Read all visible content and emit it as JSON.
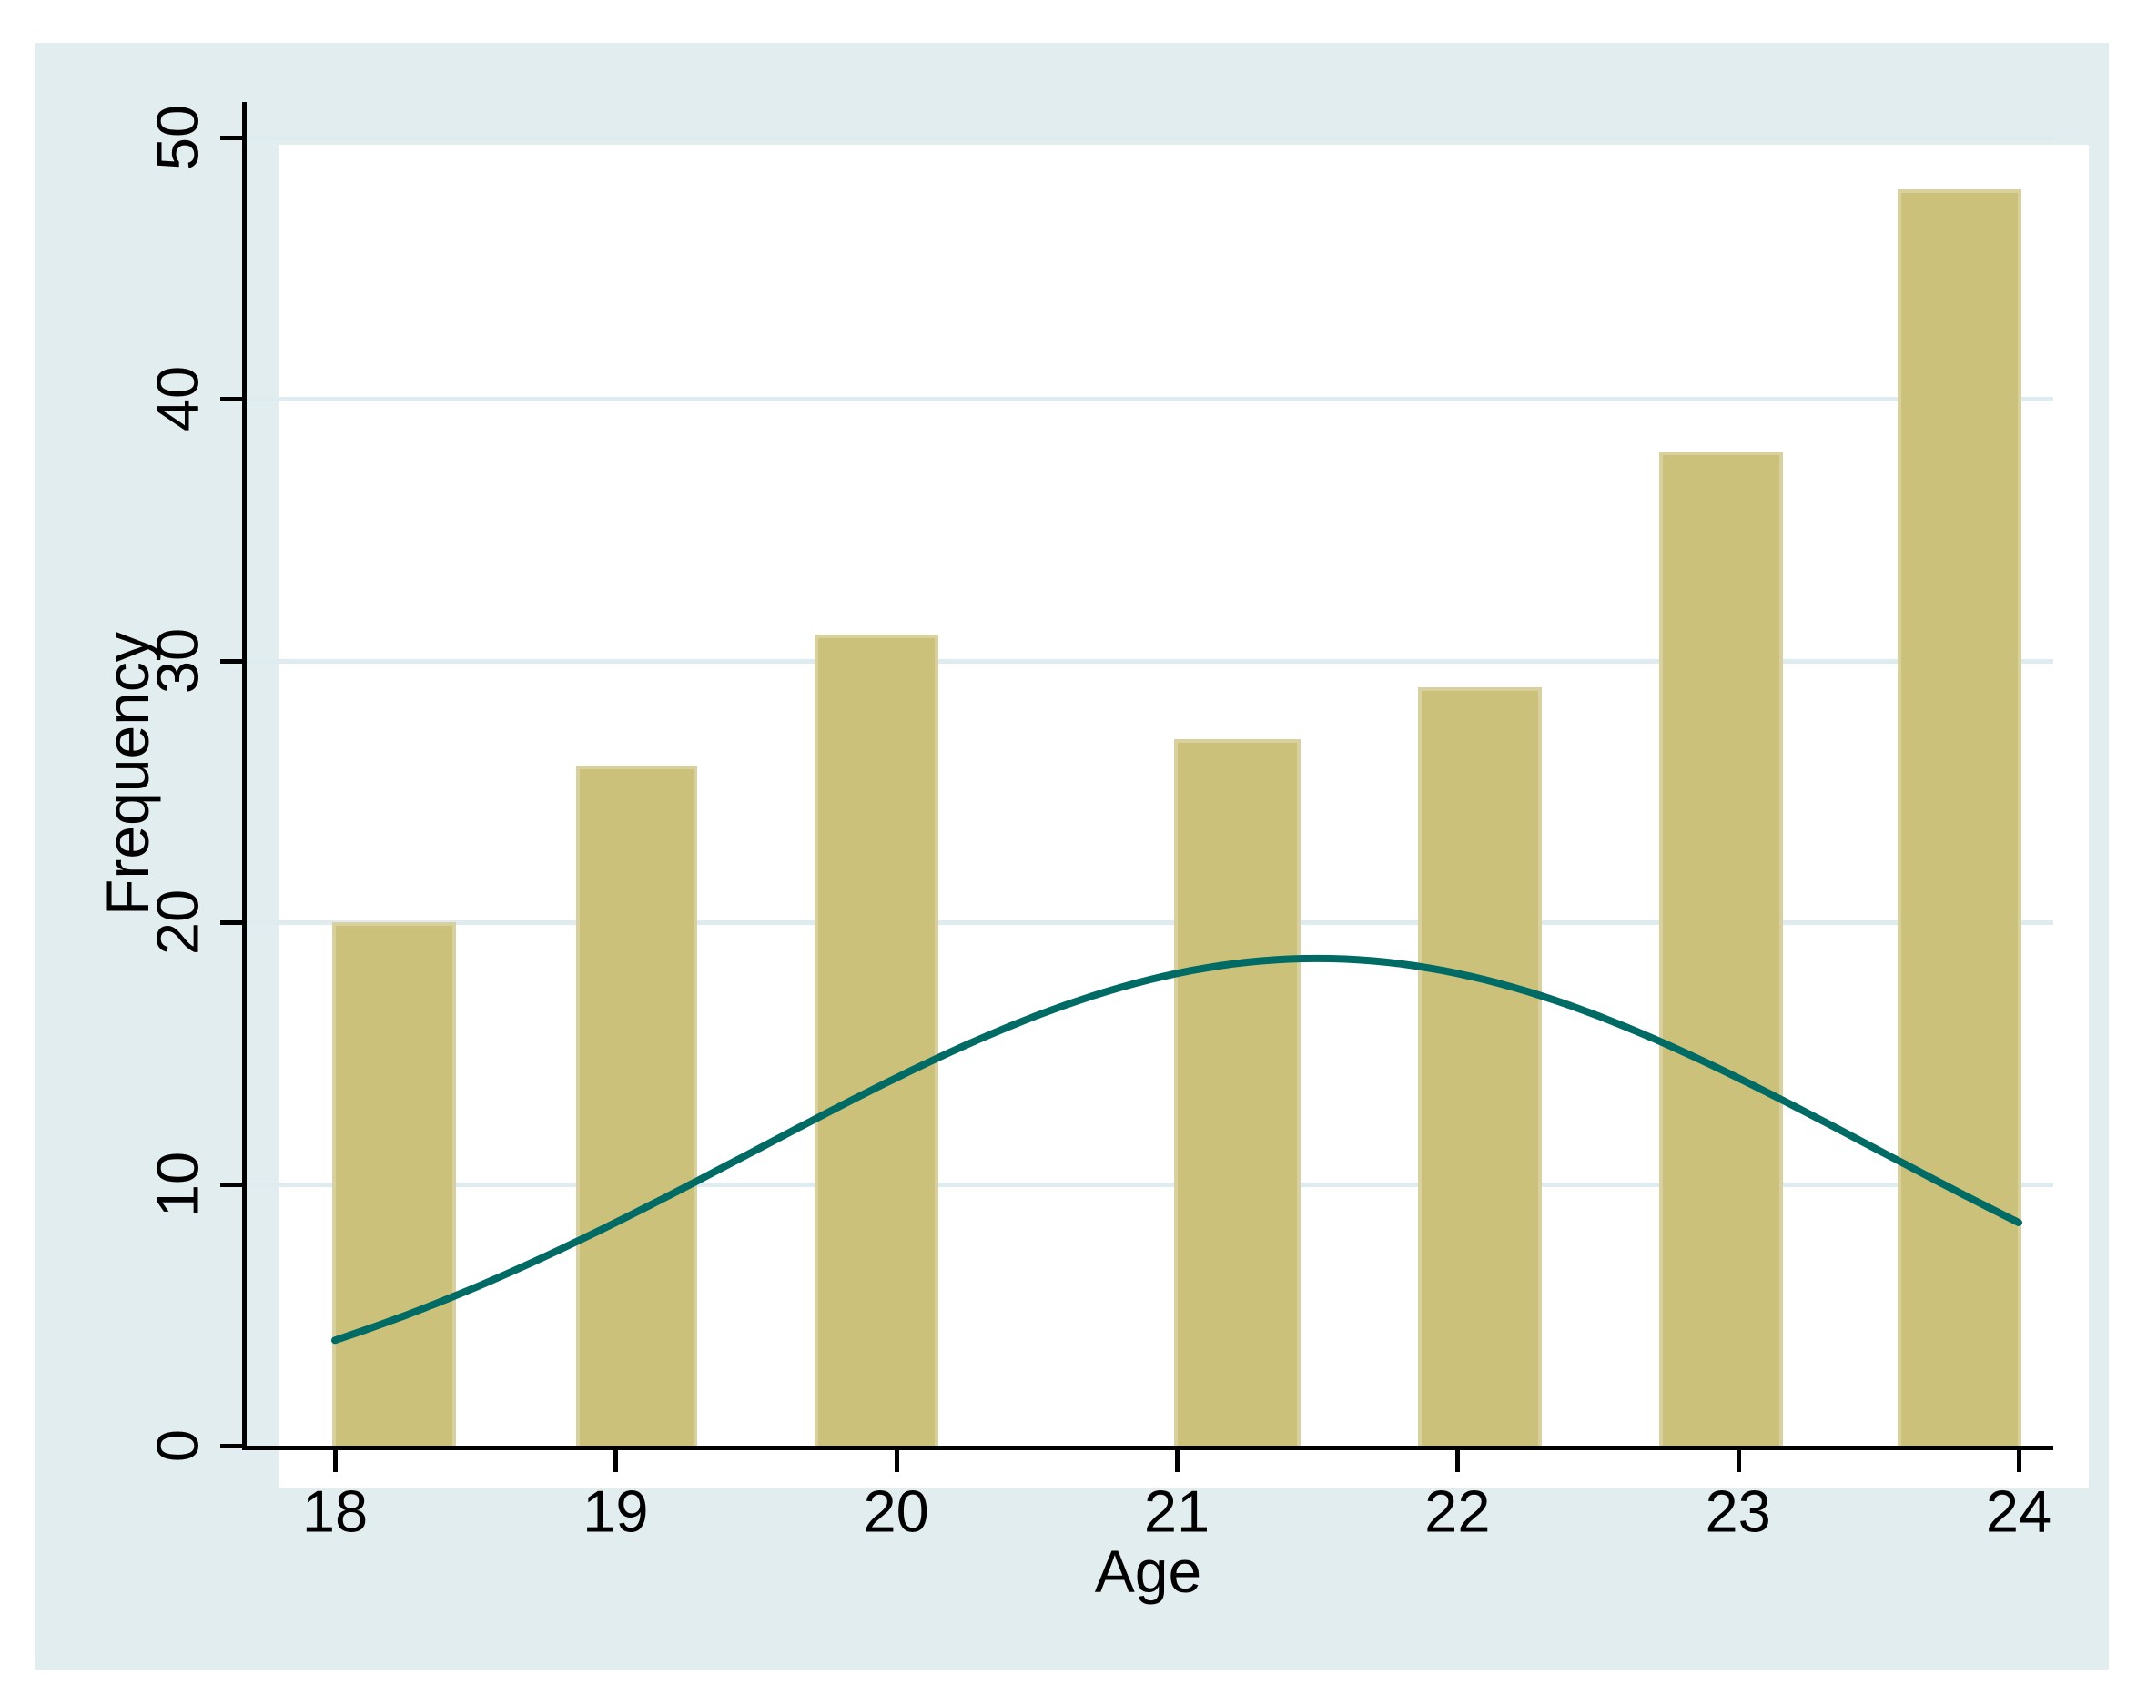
{
  "page": {
    "background": "#ffffff"
  },
  "graph": {
    "background": "#e2edf0",
    "plot_background": "#ffffff",
    "gridline_color": "#dfecef",
    "axis_color": "#000000",
    "text_color": "#000000"
  },
  "chart_data": {
    "type": "bar",
    "subtype": "histogram_with_normal_curve",
    "title": "",
    "xlabel": "Age",
    "ylabel": "Frequency",
    "x_ticks": [
      "18",
      "19",
      "20",
      "21",
      "22",
      "23",
      "24"
    ],
    "y_ticks": [
      "0",
      "10",
      "20",
      "30",
      "40",
      "50"
    ],
    "x_tick_values": [
      18,
      19,
      20,
      21,
      22,
      23,
      24
    ],
    "y_tick_values": [
      0,
      10,
      20,
      30,
      40,
      50
    ],
    "xlim": [
      17.67,
      24.12
    ],
    "ylim": [
      0,
      51.4
    ],
    "grid": "horizontal",
    "legend": "none",
    "categories": [
      18,
      19,
      20,
      21,
      22,
      23,
      24
    ],
    "values": [
      20,
      26,
      31,
      27,
      29,
      38,
      48
    ],
    "bars": [
      {
        "age": 18,
        "frequency": 20,
        "x0": 17.99,
        "x1": 18.43
      },
      {
        "age": 19,
        "frequency": 26,
        "x0": 18.86,
        "x1": 19.29
      },
      {
        "age": 20,
        "frequency": 31,
        "x0": 19.71,
        "x1": 20.15
      },
      {
        "age": 21,
        "frequency": 27,
        "x0": 20.99,
        "x1": 21.44
      },
      {
        "age": 22,
        "frequency": 29,
        "x0": 21.86,
        "x1": 22.3
      },
      {
        "age": 23,
        "frequency": 38,
        "x0": 22.72,
        "x1": 23.16
      },
      {
        "age": 24,
        "frequency": 48,
        "x0": 23.57,
        "x1": 24.01
      }
    ],
    "bar_fill": "#cbc17a",
    "bar_border": "#d9d09f",
    "normal_curve": {
      "mean": 21.5,
      "sd": 2.0,
      "peak": 18.62,
      "x_start": 18,
      "x_end": 24,
      "color": "#006b64",
      "stroke_width": 8
    }
  }
}
